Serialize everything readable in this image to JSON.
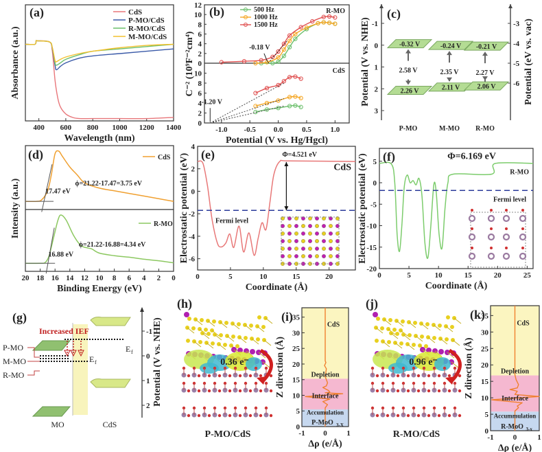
{
  "chart_data": [
    {
      "id": "a",
      "type": "line",
      "panel_label": "(a)",
      "xlabel": "Wavelength (nm)",
      "ylabel": "Absorbance (a.u.)",
      "xlim": [
        300,
        1400
      ],
      "ylim": [
        0,
        1
      ],
      "xticks": [
        "400",
        "600",
        "800",
        "1000",
        "1200",
        "1400"
      ],
      "legend_position": "top-right",
      "series": [
        {
          "name": "CdS",
          "color": "#e8767a",
          "x": [
            300,
            370,
            380,
            390,
            480,
            500,
            520,
            540,
            560,
            600,
            650,
            700,
            800,
            1000,
            1200,
            1400
          ],
          "y": [
            0.66,
            0.66,
            0.69,
            0.69,
            0.68,
            0.6,
            0.35,
            0.2,
            0.12,
            0.06,
            0.03,
            0.02,
            0.02,
            0.02,
            0.02,
            0.03
          ]
        },
        {
          "name": "P-MO/CdS",
          "color": "#3a5aa8",
          "x": [
            300,
            370,
            380,
            390,
            480,
            500,
            520,
            530,
            560,
            600,
            700,
            800,
            1000,
            1200,
            1400
          ],
          "y": [
            0.66,
            0.66,
            0.69,
            0.69,
            0.68,
            0.62,
            0.48,
            0.44,
            0.47,
            0.5,
            0.54,
            0.56,
            0.58,
            0.6,
            0.62
          ]
        },
        {
          "name": "R-MO/CdS",
          "color": "#6cbf6c",
          "x": [
            300,
            370,
            380,
            390,
            480,
            500,
            520,
            530,
            560,
            600,
            700,
            800,
            1000,
            1200,
            1400
          ],
          "y": [
            0.66,
            0.66,
            0.69,
            0.69,
            0.68,
            0.63,
            0.5,
            0.48,
            0.5,
            0.53,
            0.57,
            0.6,
            0.62,
            0.64,
            0.66
          ]
        },
        {
          "name": "M-MO/CdS",
          "color": "#f2c12e",
          "x": [
            300,
            370,
            380,
            390,
            480,
            500,
            520,
            530,
            560,
            600,
            700,
            800,
            1000,
            1200,
            1400
          ],
          "y": [
            0.66,
            0.66,
            0.69,
            0.69,
            0.68,
            0.63,
            0.52,
            0.51,
            0.53,
            0.55,
            0.58,
            0.6,
            0.63,
            0.65,
            0.66
          ]
        }
      ]
    },
    {
      "id": "b",
      "type": "line",
      "panel_label": "(b)",
      "xlabel": "Potential (V vs. Hg/Hgcl)",
      "ylabel": "C⁻² (10⁹F⁻²cm⁴)",
      "xlim": [
        -1.3,
        1.25
      ],
      "xticks": [
        "-1.0",
        "-0.5",
        "0.0",
        "0.5",
        "1.0"
      ],
      "top": {
        "label": "R-MO",
        "ylim": [
          0,
          12
        ],
        "yticks": [
          "0",
          "2",
          "4",
          "6",
          "8",
          "10",
          "12"
        ],
        "annotation": "-0.18 V",
        "series": [
          {
            "name": "500 Hz",
            "color": "#6cbf6c",
            "x": [
              -0.3,
              -0.1,
              0,
              0.1,
              0.2,
              0.3,
              0.5,
              0.7,
              0.8,
              0.9,
              1.0
            ],
            "y": [
              0,
              0,
              0.3,
              1.5,
              3.3,
              5,
              7,
              8.2,
              8.4,
              8.3,
              8.1
            ]
          },
          {
            "name": "1000 Hz",
            "color": "#f5a623",
            "x": [
              -0.4,
              -0.2,
              0,
              0.1,
              0.2,
              0.3,
              0.5,
              0.7,
              0.8,
              0.9,
              1.0
            ],
            "y": [
              0,
              0.2,
              1.2,
              2.8,
              4.6,
              6,
              7.3,
              8.2,
              8.4,
              8.3,
              8.1
            ]
          },
          {
            "name": "1500 Hz",
            "color": "#e05050",
            "x": [
              -1.0,
              -0.6,
              -0.3,
              -0.1,
              0,
              0.1,
              0.2,
              0.4,
              0.6,
              0.8,
              0.9,
              1.0
            ],
            "y": [
              0.2,
              0.4,
              0.6,
              1.3,
              2.4,
              4,
              5.7,
              7.4,
              8.6,
              9.5,
              9.6,
              9.4
            ]
          }
        ]
      },
      "bottom": {
        "label": "CdS",
        "ylim": [
          0,
          12
        ],
        "yticks": [
          "0",
          "2",
          "4",
          "6",
          "8",
          "10"
        ],
        "annotation": "-1.20 V",
        "series": [
          {
            "name": "500 Hz",
            "color": "#6cbf6c",
            "x": [
              -0.4,
              -0.2,
              0,
              0.2,
              0.3,
              0.4
            ],
            "y": [
              2.2,
              2.7,
              3,
              3.4,
              3.5,
              3.2
            ]
          },
          {
            "name": "1000 Hz",
            "color": "#f5a623",
            "x": [
              -0.4,
              -0.2,
              0,
              0.2,
              0.3,
              0.4
            ],
            "y": [
              3.4,
              4,
              4.5,
              5.2,
              5.3,
              5
            ]
          },
          {
            "name": "1500 Hz",
            "color": "#e05050",
            "x": [
              -0.4,
              -0.2,
              0,
              0.1,
              0.2,
              0.3,
              0.4
            ],
            "y": [
              6,
              7,
              7.6,
              8.4,
              9.2,
              9.3,
              8.9
            ]
          }
        ]
      }
    },
    {
      "id": "c",
      "type": "diagram",
      "panel_label": "(c)",
      "ylabel_left": "Potential (V vs. NHE)",
      "ylabel_right": "Potential (eV vs. vac)",
      "yticks_left": [
        "-1",
        "0",
        "1",
        "2",
        "3"
      ],
      "yticks_right": [
        "-3",
        "-4",
        "-5",
        "-6"
      ],
      "materials": [
        {
          "name": "P-MO",
          "cb": "-0.32 V",
          "vb": "2.26 V",
          "gap": "2.58 V"
        },
        {
          "name": "M-MO",
          "cb": "-0.24 V",
          "vb": "2.11 V",
          "gap": "2.35 V"
        },
        {
          "name": "R-MO",
          "cb": "-0.21 V",
          "vb": "2.06 V",
          "gap": "2.27 V"
        }
      ]
    },
    {
      "id": "d",
      "type": "line",
      "panel_label": "(d)",
      "xlabel": "Binding Energy (eV)",
      "ylabel": "Intensity (a.u.)",
      "xlim": [
        20,
        0
      ],
      "xticks": [
        "20",
        "18",
        "16",
        "14",
        "12",
        "10",
        "8",
        "6",
        "4",
        "2",
        "0"
      ],
      "top": {
        "name": "CdS",
        "color": "#f0a030",
        "cutoff": "17.47 eV",
        "annotation": "ϕ=21.22-17.47=3.75 eV",
        "x": [
          20,
          18.5,
          17.8,
          17,
          16.5,
          16,
          15.5,
          15,
          14,
          13,
          12,
          10,
          8,
          6,
          4,
          2,
          0
        ],
        "y": [
          0.05,
          0.05,
          0.08,
          0.25,
          0.55,
          0.95,
          1,
          0.9,
          0.7,
          0.55,
          0.4,
          0.3,
          0.25,
          0.2,
          0.15,
          0.1,
          0.05
        ]
      },
      "bottom": {
        "name": "R-MO",
        "color": "#8cc860",
        "cutoff": "16.88 eV",
        "annotation": "ϕ=21.22-16.88=4.34 eV",
        "x": [
          20,
          18,
          17.3,
          16.8,
          16.2,
          15.6,
          15.2,
          14.5,
          13.5,
          12.5,
          11.5,
          11,
          10,
          8,
          6,
          4,
          2,
          0
        ],
        "y": [
          0.05,
          0.05,
          0.07,
          0.2,
          0.55,
          0.9,
          1,
          0.9,
          0.6,
          0.4,
          0.35,
          0.33,
          0.25,
          0.2,
          0.17,
          0.13,
          0.1,
          0.06
        ]
      }
    },
    {
      "id": "e",
      "type": "line",
      "panel_label": "(e)",
      "xlabel": "Coordinate (Å)",
      "ylabel": "Electrostatic potential (eV)",
      "xlim": [
        0,
        24
      ],
      "ylim": [
        -7,
        4
      ],
      "xticks": [
        "0",
        "5",
        "10",
        "15",
        "20"
      ],
      "yticks": [
        "4",
        "2",
        "0",
        "-2",
        "-4",
        "-6"
      ],
      "series_name": "CdS",
      "color": "#e87878",
      "work_function": "Φ=4.521 eV",
      "fermi_label": "Fermi level",
      "fermi_level": -1.7,
      "x": [
        0,
        0.8,
        1.5,
        2.2,
        3,
        3.6,
        4.3,
        4.9,
        5.5,
        6.3,
        7,
        7.8,
        8.6,
        9.2,
        9.8,
        10.4,
        11,
        11.6,
        12.5,
        14,
        24
      ],
      "y": [
        2.65,
        2.5,
        0.5,
        -2.5,
        -4.6,
        -4.95,
        -4.6,
        -3.8,
        -5,
        -3.1,
        -5.4,
        -3.7,
        -5.7,
        -4.2,
        -2.8,
        -3.4,
        -1,
        1.5,
        2.65,
        2.7,
        2.65
      ]
    },
    {
      "id": "f",
      "type": "line",
      "panel_label": "(f)",
      "xlabel": "Coordinate (Å)",
      "ylabel": "Electrostatic potential (eV)",
      "xlim": [
        0,
        26
      ],
      "ylim": [
        -20,
        8
      ],
      "xticks": [
        "0",
        "5",
        "10",
        "15",
        "20",
        "25"
      ],
      "yticks": [
        "5",
        "0",
        "-5",
        "-10",
        "-15",
        "-20"
      ],
      "series_name": "R-MO",
      "color": "#7ccc6c",
      "work_function": "Φ=6.169 eV",
      "fermi_label": "Fermi level",
      "fermi_level": -1.8,
      "x": [
        0,
        2,
        2.6,
        3,
        3.4,
        3.8,
        4.2,
        4.7,
        5.2,
        5.7,
        6.2,
        6.7,
        7.2,
        7.7,
        8.2,
        8.7,
        9.2,
        9.6,
        10.1,
        10.6,
        11.1,
        11.6,
        12.5,
        19,
        19.6,
        26
      ],
      "y": [
        4.5,
        4.4,
        0,
        -12,
        -16,
        -10,
        -1,
        1.8,
        0,
        0.5,
        -0.5,
        1,
        -3,
        -14,
        -17.5,
        -10,
        -0.5,
        -2,
        -12,
        -15.2,
        -6,
        0,
        2,
        2,
        4.5,
        4.5
      ]
    },
    {
      "id": "g",
      "type": "diagram",
      "panel_label": "(g)",
      "annotation": "Increased IEF",
      "labels": [
        "P-MO",
        "M-MO",
        "R-MO"
      ],
      "ef_label": "E",
      "ef_sub": "f",
      "bottom_labels": [
        "MO",
        "CdS"
      ],
      "axis_label": "Potential (V vs. NHE)",
      "yticks": [
        "-1",
        "0",
        "1",
        "2"
      ]
    },
    {
      "id": "h",
      "type": "structure",
      "panel_label": "(h)",
      "caption": "P-MO/CdS",
      "charge": "0.36 e⁻"
    },
    {
      "id": "i",
      "type": "line",
      "panel_label": "(i)",
      "xlabel": "Δρ (e/Å)",
      "ylabel": "Z direction (Å)",
      "xlim": [
        -1,
        1
      ],
      "ylim": [
        0,
        38
      ],
      "xticks": [
        "-1",
        "0",
        "1"
      ],
      "yticks": [
        "0",
        "5",
        "10",
        "15",
        "20",
        "25",
        "30",
        "35"
      ],
      "regions": [
        {
          "name": "CdS",
          "from": 15.3,
          "to": 38,
          "color": "#fbf5c0"
        },
        {
          "name": "Depletion",
          "label_at": 16.5
        },
        {
          "name": "Interface",
          "from": 5.5,
          "to": 15.3,
          "color": "#f5b8d0"
        },
        {
          "name": "Accumulation",
          "from": 0,
          "to": 5.5,
          "color": "#c6d8ef"
        }
      ],
      "region_labels": {
        "top": "CdS",
        "depletion": "Depletion",
        "interface": "Interface",
        "accumulation": "Accumulation",
        "substrate": "P-MoO",
        "substrate_sub": "3-X"
      },
      "color": "#f08030",
      "x": [
        0,
        0,
        0.03,
        -0.03,
        0.05,
        0,
        0.1,
        0.05,
        -0.1,
        0.15,
        0.2,
        0,
        0.75,
        -0.85,
        0.2,
        -0.1,
        0.1,
        0,
        0
      ],
      "y": [
        38,
        21,
        20.5,
        19.5,
        18.5,
        16,
        14,
        13,
        12.5,
        11.5,
        11,
        10.8,
        10.5,
        9.6,
        8.8,
        8,
        7,
        6,
        0
      ]
    },
    {
      "id": "j",
      "type": "structure",
      "panel_label": "(j)",
      "caption": "R-MO/CdS",
      "charge": "0.96 e⁻"
    },
    {
      "id": "k",
      "type": "line",
      "panel_label": "(k)",
      "xlabel": "Δρ (e/Å)",
      "ylabel": "Z direction (Å)",
      "xlim": [
        -1,
        1
      ],
      "ylim": [
        0,
        38
      ],
      "xticks": [
        "-1",
        "0",
        "1"
      ],
      "yticks": [
        "0",
        "5",
        "10",
        "15",
        "20",
        "25",
        "30",
        "35"
      ],
      "regions": [
        {
          "name": "CdS",
          "from": 16.8,
          "to": 38,
          "color": "#fbf5c0"
        },
        {
          "name": "Interface",
          "from": 5.8,
          "to": 16.8,
          "color": "#f5b8d0"
        },
        {
          "name": "Accumulation",
          "from": 0,
          "to": 5.8,
          "color": "#c6d8ef"
        }
      ],
      "region_labels": {
        "top": "CdS",
        "depletion": "Depletion",
        "interface": "Interface",
        "accumulation": "Accummulation",
        "substrate": "R-MoO",
        "substrate_sub": "3-x"
      },
      "color": "#f08030",
      "x": [
        0,
        0,
        0.05,
        0.15,
        0.1,
        -0.2,
        0.1,
        0,
        1.0,
        -0.95,
        0.3,
        0.1,
        0.15,
        0,
        0
      ],
      "y": [
        38,
        17,
        15.5,
        14,
        13,
        12.5,
        12,
        11,
        10.4,
        9.4,
        8.5,
        7.5,
        7,
        6,
        0
      ]
    }
  ]
}
